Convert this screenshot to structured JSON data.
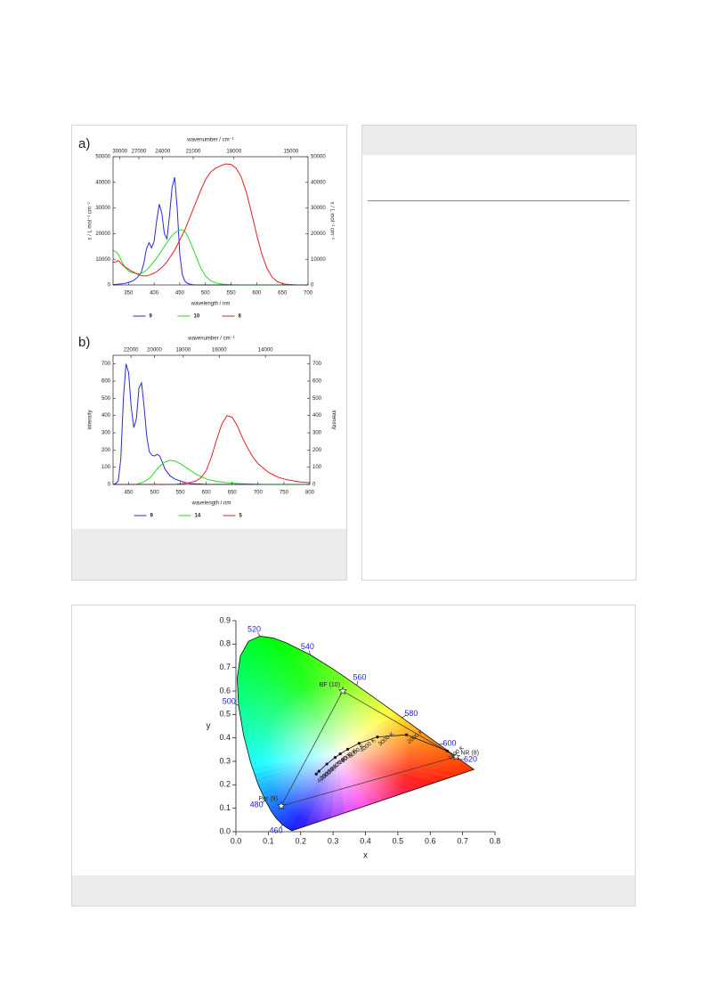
{
  "chart_data": [
    {
      "type": "line",
      "panel": "a)",
      "xlabel": "wavelength / nm",
      "ylabel": "ε / L mol⁻¹ cm⁻¹",
      "y2label": "ε / L mol⁻¹ cm⁻¹",
      "x2label": "wavenumber / cm⁻¹",
      "xlim": [
        320,
        700
      ],
      "xticks": [
        350,
        400,
        450,
        500,
        550,
        600,
        650,
        700
      ],
      "x2ticks": [
        30000,
        27000,
        24000,
        21000,
        18000,
        15000
      ],
      "ylim": [
        0,
        50000
      ],
      "yticks": [
        0,
        10000,
        20000,
        30000,
        40000,
        50000
      ],
      "y2lim": [
        0,
        50000
      ],
      "y2ticks": [
        0,
        10000,
        20000,
        30000,
        40000,
        50000
      ],
      "x": [
        320,
        325,
        330,
        335,
        340,
        345,
        350,
        355,
        360,
        365,
        370,
        375,
        380,
        385,
        390,
        395,
        400,
        405,
        410,
        415,
        420,
        425,
        430,
        435,
        440,
        445,
        450,
        455,
        460,
        465,
        470,
        475,
        480,
        490,
        500,
        510,
        520,
        530,
        540,
        550,
        560,
        570,
        580,
        590,
        600,
        610,
        620,
        630,
        640,
        650,
        660,
        670,
        680,
        690,
        700
      ],
      "series": [
        {
          "name": "9",
          "color": "#2a2ae0",
          "values": [
            150,
            200,
            300,
            400,
            500,
            700,
            1000,
            1300,
            1800,
            2500,
            3500,
            5000,
            8500,
            14000,
            16500,
            14500,
            17000,
            25000,
            31500,
            28000,
            20000,
            18000,
            27000,
            38000,
            42000,
            30000,
            12000,
            4000,
            1500,
            600,
            300,
            100,
            50,
            20,
            0,
            0,
            0,
            0,
            0,
            0,
            0,
            0,
            0,
            0,
            0,
            0,
            0,
            0,
            0,
            0,
            0,
            0,
            0,
            0,
            0
          ]
        },
        {
          "name": "10",
          "color": "#22dd22",
          "values": [
            13500,
            13000,
            12000,
            10000,
            8000,
            6500,
            5500,
            5000,
            4700,
            4500,
            4400,
            4500,
            5000,
            5800,
            6800,
            8000,
            9200,
            10500,
            12000,
            13500,
            15000,
            16500,
            18000,
            19200,
            20200,
            21000,
            21500,
            21500,
            20800,
            19200,
            17000,
            14500,
            12000,
            7000,
            3500,
            1700,
            800,
            400,
            200,
            100,
            50,
            0,
            0,
            0,
            0,
            0,
            0,
            0,
            0,
            0,
            0,
            0,
            0,
            0,
            0
          ]
        },
        {
          "name": "8",
          "color": "#e82020",
          "values": [
            8800,
            9000,
            9500,
            8500,
            7500,
            6800,
            6200,
            5500,
            5000,
            4500,
            4000,
            3700,
            3500,
            3600,
            3800,
            4200,
            4600,
            5200,
            6000,
            6800,
            7800,
            9000,
            10500,
            12000,
            13500,
            15500,
            17500,
            19500,
            21500,
            24000,
            26500,
            29000,
            31500,
            36500,
            41000,
            44000,
            45500,
            46500,
            47200,
            47000,
            45500,
            42000,
            36000,
            28000,
            19500,
            12000,
            6500,
            3000,
            1300,
            500,
            200,
            100,
            0,
            0,
            0
          ]
        }
      ]
    },
    {
      "type": "line",
      "panel": "b)",
      "xlabel": "wavelength / nm",
      "ylabel": "intensity",
      "y2label": "intensity",
      "x2label": "wavenumber / cm⁻¹",
      "xlim": [
        420,
        800
      ],
      "xticks": [
        450,
        500,
        550,
        600,
        650,
        700,
        750,
        800
      ],
      "x2ticks": [
        22000,
        20000,
        18000,
        16000,
        14000
      ],
      "ylim": [
        0,
        750
      ],
      "yticks": [
        0,
        100,
        200,
        300,
        400,
        500,
        600,
        700
      ],
      "y2lim": [
        0,
        750
      ],
      "y2ticks": [
        0,
        100,
        200,
        300,
        400,
        500,
        600,
        700
      ],
      "x": [
        420,
        425,
        430,
        435,
        440,
        445,
        450,
        455,
        460,
        465,
        470,
        475,
        480,
        485,
        490,
        495,
        500,
        505,
        510,
        515,
        520,
        530,
        540,
        550,
        560,
        570,
        580,
        590,
        600,
        610,
        620,
        630,
        640,
        650,
        660,
        670,
        680,
        690,
        700,
        710,
        720,
        730,
        740,
        750,
        760,
        770,
        780,
        790,
        800
      ],
      "series": [
        {
          "name": "9",
          "color": "#2a2ae0",
          "values": [
            0,
            5,
            20,
            150,
            500,
            700,
            650,
            450,
            330,
            380,
            560,
            590,
            450,
            280,
            190,
            170,
            165,
            175,
            165,
            130,
            90,
            50,
            30,
            20,
            10,
            5,
            3,
            2,
            0,
            0,
            0,
            0,
            0,
            0,
            0,
            0,
            0,
            0,
            0,
            0,
            0,
            0,
            0,
            0,
            0,
            0,
            0,
            0,
            0
          ]
        },
        {
          "name": "14",
          "color": "#22dd22",
          "values": [
            0,
            0,
            0,
            0,
            0,
            0,
            0,
            0,
            0,
            0,
            5,
            10,
            15,
            25,
            35,
            50,
            70,
            88,
            105,
            118,
            130,
            140,
            135,
            120,
            100,
            80,
            60,
            45,
            32,
            24,
            18,
            14,
            10,
            8,
            5,
            4,
            3,
            2,
            1,
            0,
            0,
            0,
            0,
            0,
            0,
            0,
            0,
            0,
            0
          ]
        },
        {
          "name": "5",
          "color": "#e82020",
          "values": [
            0,
            0,
            0,
            0,
            0,
            0,
            0,
            0,
            0,
            0,
            0,
            0,
            0,
            0,
            0,
            0,
            0,
            0,
            0,
            0,
            0,
            0,
            0,
            3,
            6,
            12,
            20,
            40,
            80,
            160,
            260,
            350,
            400,
            390,
            340,
            270,
            210,
            160,
            120,
            95,
            70,
            55,
            40,
            32,
            25,
            20,
            15,
            12,
            10
          ]
        }
      ]
    },
    {
      "type": "cie",
      "xlabel": "x",
      "ylabel": "y",
      "xlim": [
        0,
        0.8
      ],
      "xticks": [
        {
          "value": 0,
          "label": "0.0"
        },
        0.1,
        0.2,
        0.3,
        0.4,
        0.5,
        0.6,
        0.7,
        0.8
      ],
      "ylim": [
        0,
        0.9
      ],
      "yticks": [
        {
          "value": 0,
          "label": "0.0"
        },
        0.1,
        0.2,
        0.3,
        0.4,
        0.5,
        0.6,
        0.7,
        0.8,
        0.9
      ],
      "locus": {
        "x": [
          0.1741,
          0.1714,
          0.1644,
          0.1566,
          0.144,
          0.1241,
          0.1096,
          0.0913,
          0.0687,
          0.0454,
          0.0235,
          0.0082,
          0.0039,
          0.0139,
          0.0389,
          0.0743,
          0.1142,
          0.1547,
          0.2296,
          0.3016,
          0.3731,
          0.4441,
          0.5125,
          0.5752,
          0.627,
          0.6658,
          0.6915,
          0.719,
          0.7347
        ],
        "y": [
          0.005,
          0.0051,
          0.0109,
          0.0177,
          0.0297,
          0.0578,
          0.0868,
          0.1327,
          0.2007,
          0.295,
          0.4127,
          0.5384,
          0.6548,
          0.7502,
          0.812,
          0.8338,
          0.8262,
          0.8059,
          0.7543,
          0.6923,
          0.6245,
          0.5547,
          0.4866,
          0.4242,
          0.3725,
          0.334,
          0.3083,
          0.2809,
          0.2653
        ]
      },
      "wavelength_labels": [
        {
          "label": 460,
          "x": 0.144,
          "y": 0.0297
        },
        {
          "label": 480,
          "x": 0.0913,
          "y": 0.1327
        },
        {
          "label": 500,
          "x": 0.0082,
          "y": 0.5384
        },
        {
          "label": 520,
          "x": 0.0743,
          "y": 0.8338
        },
        {
          "label": 540,
          "x": 0.2296,
          "y": 0.7543
        },
        {
          "label": 560,
          "x": 0.3731,
          "y": 0.6245
        },
        {
          "label": 580,
          "x": 0.5125,
          "y": 0.4866
        },
        {
          "label": 600,
          "x": 0.627,
          "y": 0.3725
        },
        {
          "label": 620,
          "x": 0.6915,
          "y": 0.3083
        }
      ],
      "planckian": [
        {
          "label": "1000 K",
          "x": 0.6528,
          "y": 0.3444
        },
        {
          "label": "2000 K",
          "x": 0.5267,
          "y": 0.4133
        },
        {
          "label": "3000 K",
          "x": 0.4369,
          "y": 0.4041
        },
        {
          "label": "4000 K",
          "x": 0.3805,
          "y": 0.3768
        },
        {
          "label": "5000 K",
          "x": 0.3451,
          "y": 0.3516
        },
        {
          "label": "6000 K",
          "x": 0.3221,
          "y": 0.3318
        },
        {
          "label": "7000 K",
          "x": 0.3064,
          "y": 0.3166
        },
        {
          "label": "10000 K",
          "x": 0.2807,
          "y": 0.2884
        },
        {
          "label": "20000 K",
          "x": 0.2565,
          "y": 0.2577
        },
        {
          "label": "40000 K",
          "x": 0.248,
          "y": 0.246
        }
      ],
      "samples": [
        {
          "name": "BF (10)",
          "x": 0.33,
          "y": 0.6
        },
        {
          "name": "Per (9)",
          "x": 0.14,
          "y": 0.11
        },
        {
          "name": "NR (8)",
          "x": 0.68,
          "y": 0.32
        }
      ]
    }
  ]
}
